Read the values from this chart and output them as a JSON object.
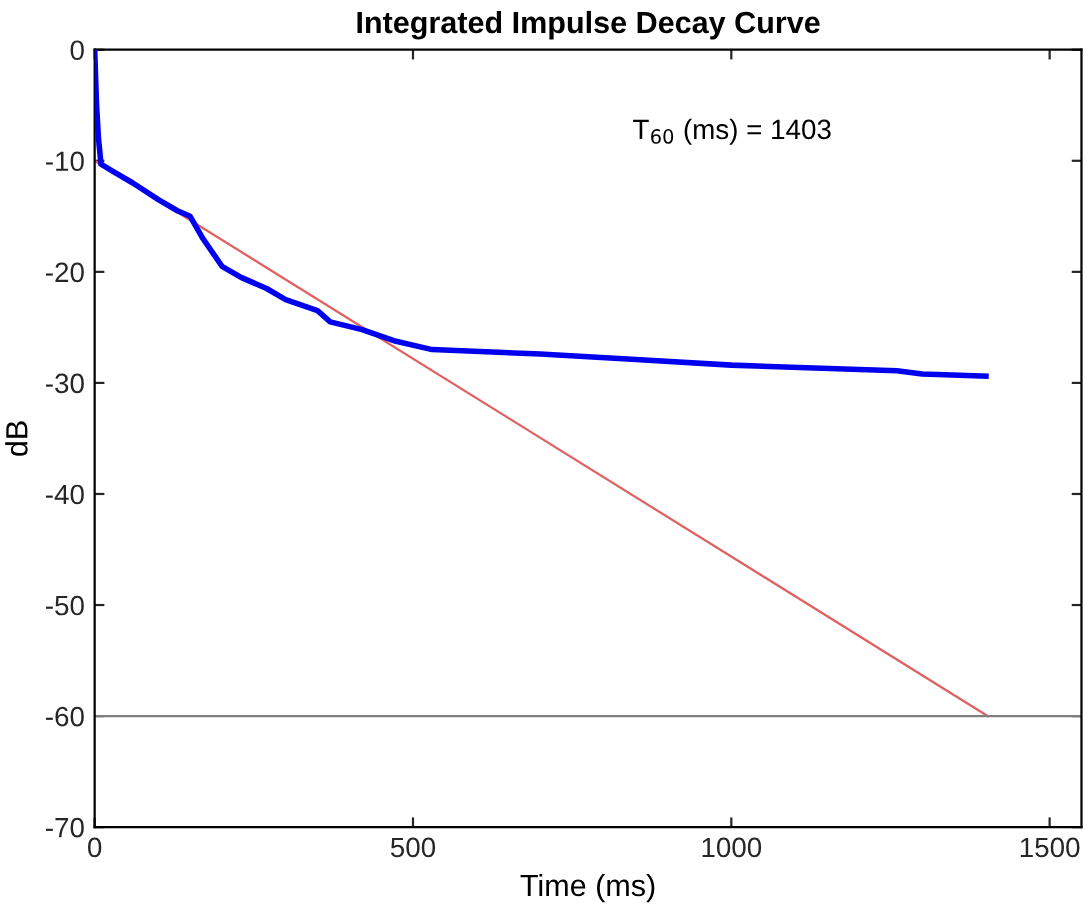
{
  "chart_data": {
    "type": "line",
    "title": "Integrated Impulse Decay Curve",
    "xlabel": "Time (ms)",
    "ylabel": "dB",
    "series": [
      {
        "color": "#0000ee",
        "x": [
          0,
          3,
          6,
          10,
          30,
          60,
          100,
          130,
          150,
          170,
          200,
          230,
          270,
          300,
          350,
          370,
          420,
          470,
          530,
          700,
          850,
          1000,
          1260,
          1300,
          1400
        ],
        "values": [
          0,
          -5,
          -8,
          -10.3,
          -11,
          -12,
          -13.5,
          -14.5,
          -15,
          -17,
          -19.5,
          -20.5,
          -21.5,
          -22.5,
          -23.5,
          -24.5,
          -25.2,
          -26.2,
          -27,
          -27.4,
          -27.9,
          -28.4,
          -28.9,
          -29.2,
          -29.4
        ]
      },
      {
        "color": "#e06060",
        "x": [
          0,
          1403
        ],
        "values": [
          -10,
          -60
        ]
      }
    ],
    "ref_lines": [
      {
        "axis": "y",
        "value": -60,
        "color": "#808080"
      }
    ],
    "annotations": [
      "T$_{60}$ (ms) = 1403"
    ],
    "xlim": [
      0,
      1550
    ],
    "ylim": [
      -70,
      0
    ],
    "xticks": [
      0,
      500,
      1000,
      1500
    ],
    "yticks": [
      -70,
      -60,
      -50,
      -40,
      -30,
      -20,
      -10,
      0
    ],
    "grid": false,
    "legend": false
  }
}
